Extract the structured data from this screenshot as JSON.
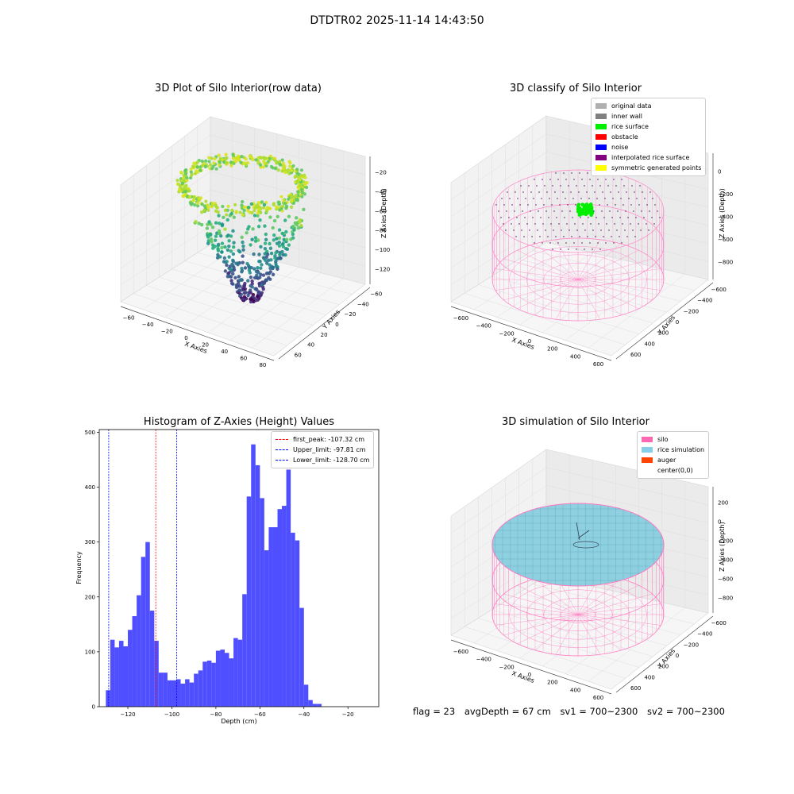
{
  "suptitle": "DTDTR02 2025-11-14 14:43:50",
  "footer": {
    "flag": "flag = 23",
    "avg": "avgDepth = 67 cm",
    "sv1": "sv1 = 700~2300",
    "sv2": "sv2 = 700~2300"
  },
  "chart_data": [
    {
      "type": "scatter",
      "title": "3D Plot of Silo Interior(row data)",
      "xlabel": "X Axies",
      "ylabel": "Y Axies",
      "zlabel": "Z Axies (Depth)",
      "x_ticks": [
        "−60",
        "−40",
        "−20",
        "0",
        "20",
        "40",
        "60",
        "80"
      ],
      "y_ticks": [
        "60",
        "40",
        "20",
        "0",
        "−20",
        "−40",
        "−60"
      ],
      "z_ticks": [
        "−20",
        "−40",
        "−60",
        "−80",
        "−100",
        "−120"
      ],
      "colormap": "viridis"
    },
    {
      "type": "scatter",
      "title": "3D classify of Silo Interior",
      "xlabel": "X Axies",
      "ylabel": "Y Axies",
      "zlabel": "Z Axies (Depth)",
      "x_ticks": [
        "−600",
        "−400",
        "−200",
        "0",
        "200",
        "400",
        "600"
      ],
      "y_ticks": [
        "600",
        "400",
        "200",
        "0",
        "−200",
        "−400",
        "−600"
      ],
      "z_ticks": [
        "0",
        "−200",
        "−400",
        "−600",
        "−800"
      ],
      "legend": [
        {
          "label": "original data",
          "color": "#b0b0b0"
        },
        {
          "label": "inner wall",
          "color": "#808080"
        },
        {
          "label": "rice surface",
          "color": "#00ee00"
        },
        {
          "label": "obstacle",
          "color": "#ff0000"
        },
        {
          "label": "noise",
          "color": "#0000ff"
        },
        {
          "label": "interpolated rice surface",
          "color": "#800080"
        },
        {
          "label": "symmetric generated points",
          "color": "#ffff00"
        }
      ],
      "legend_position": "top-right"
    },
    {
      "type": "bar",
      "title": "Histogram of Z-Axies (Height) Values",
      "xlabel": "Depth (cm)",
      "ylabel": "Frequency",
      "bar_color": "#4b4bff",
      "bins_start": -130,
      "bin_width": 2,
      "values": [
        30,
        122,
        108,
        120,
        110,
        140,
        165,
        203,
        273,
        300,
        175,
        120,
        62,
        62,
        48,
        48,
        50,
        42,
        50,
        44,
        60,
        66,
        82,
        84,
        80,
        102,
        104,
        98,
        88,
        125,
        122,
        205,
        383,
        478,
        440,
        380,
        285,
        327,
        327,
        360,
        366,
        432,
        317,
        303,
        180,
        40,
        12,
        5,
        5
      ],
      "xlim": [
        -133,
        -6
      ],
      "ylim": [
        0,
        505
      ],
      "x_ticks": [
        -120,
        -100,
        -80,
        -60,
        -40,
        -20
      ],
      "x_tick_labels": [
        "−120",
        "−100",
        "−80",
        "−60",
        "−40",
        "−20"
      ],
      "y_ticks": [
        0,
        100,
        200,
        300,
        400,
        500
      ],
      "y_tick_labels": [
        "0",
        "100",
        "200",
        "300",
        "400",
        "500"
      ],
      "lines": [
        {
          "label": "first_peak: -107.32 cm",
          "value": -107.32,
          "color": "#ff0000"
        },
        {
          "label": "Upper_limit: -97.81 cm",
          "value": -97.81,
          "color": "#0000ff"
        },
        {
          "label": "Lower_limit: -128.70 cm",
          "value": -128.7,
          "color": "#0000ff"
        }
      ],
      "legend_position": "top-right"
    },
    {
      "type": "scatter",
      "title": "3D simulation of Silo Interior",
      "xlabel": "X Axies",
      "ylabel": "Y Axies",
      "zlabel": "Z Axies (Depth)",
      "x_ticks": [
        "−600",
        "−400",
        "−200",
        "0",
        "200",
        "400",
        "600"
      ],
      "y_ticks": [
        "600",
        "400",
        "200",
        "0",
        "−200",
        "−400",
        "−600"
      ],
      "z_ticks": [
        "200",
        "0",
        "−200",
        "−400",
        "−600",
        "−800"
      ],
      "legend": [
        {
          "label": "silo",
          "color": "#ff69b4"
        },
        {
          "label": "rice simulation",
          "color": "#87ceeb"
        },
        {
          "label": "auger",
          "color": "#ff4500"
        },
        {
          "label": "center(0,0)",
          "color": "#ffffff"
        }
      ],
      "legend_position": "top-right"
    }
  ]
}
